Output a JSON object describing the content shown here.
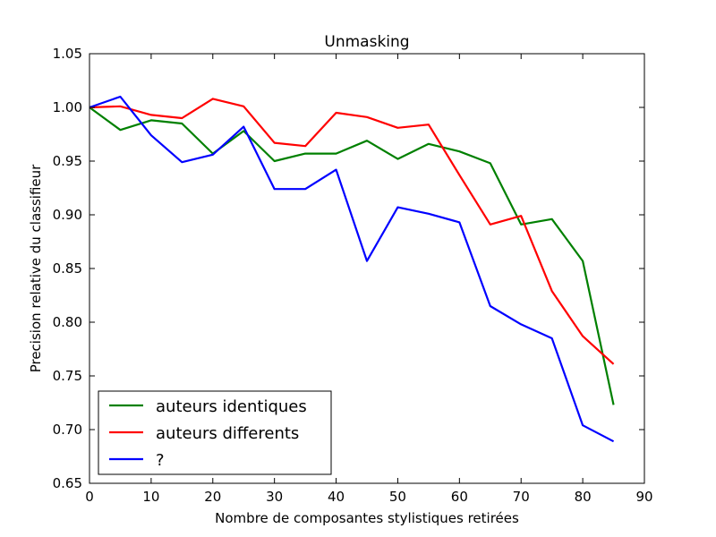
{
  "chart_data": {
    "type": "line",
    "title": "Unmasking",
    "xlabel": "Nombre de composantes stylistiques retirées",
    "ylabel": "Precision relative du classifieur",
    "xlim": [
      0,
      90
    ],
    "ylim": [
      0.65,
      1.05
    ],
    "xticks": [
      0,
      10,
      20,
      30,
      40,
      50,
      60,
      70,
      80,
      90
    ],
    "xtick_labels": [
      "0",
      "10",
      "20",
      "30",
      "40",
      "50",
      "60",
      "70",
      "80",
      "90"
    ],
    "yticks": [
      0.65,
      0.7,
      0.75,
      0.8,
      0.85,
      0.9,
      0.95,
      1.0,
      1.05
    ],
    "ytick_labels": [
      "0.65",
      "0.70",
      "0.75",
      "0.80",
      "0.85",
      "0.90",
      "0.95",
      "1.00",
      "1.05"
    ],
    "grid": false,
    "legend_position": "bottom-left",
    "x": [
      0,
      5,
      10,
      15,
      20,
      25,
      30,
      35,
      40,
      45,
      50,
      55,
      60,
      65,
      70,
      75,
      80,
      85
    ],
    "series": [
      {
        "name": "auteurs identiques",
        "color": "#008000",
        "values": [
          1.0,
          0.979,
          0.988,
          0.985,
          0.957,
          0.978,
          0.95,
          0.957,
          0.957,
          0.969,
          0.952,
          0.966,
          0.959,
          0.948,
          0.891,
          0.896,
          0.857,
          0.723
        ]
      },
      {
        "name": "auteurs differents",
        "color": "#ff0000",
        "values": [
          1.0,
          1.001,
          0.993,
          0.99,
          1.008,
          1.001,
          0.967,
          0.964,
          0.995,
          0.991,
          0.981,
          0.984,
          0.937,
          0.891,
          0.899,
          0.829,
          0.787,
          0.761
        ]
      },
      {
        "name": "?",
        "color": "#0000ff",
        "values": [
          1.0,
          1.01,
          0.974,
          0.949,
          0.956,
          0.982,
          0.924,
          0.924,
          0.942,
          0.857,
          0.907,
          0.901,
          0.893,
          0.815,
          0.798,
          0.785,
          0.704,
          0.689
        ]
      }
    ]
  }
}
